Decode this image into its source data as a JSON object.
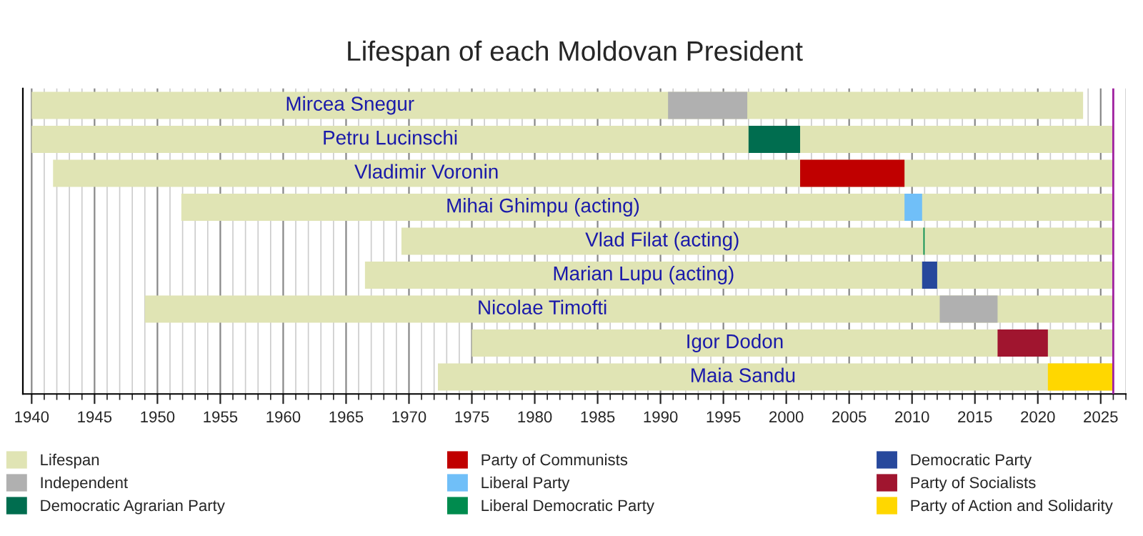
{
  "chart_data": {
    "type": "bar",
    "orientation": "horizontal",
    "title": "Lifespan of each Moldovan President",
    "categories": [
      "Mircea Snegur",
      "Petru Lucinschi",
      "Vladimir Voronin",
      "Mihai Ghimpu (acting)",
      "Vlad Filat (acting)",
      "Marian Lupu (acting)",
      "Nicolae Timofti",
      "Igor Dodon",
      "Maia Sandu"
    ],
    "series": [
      {
        "name": "Lifespan",
        "color": "#e0e4b4",
        "base": [
          1940.0,
          1940.0,
          1941.7,
          1951.9,
          1969.4,
          1966.5,
          1949.0,
          1975.0,
          1972.3
        ],
        "values": [
          83.6,
          86.0,
          84.3,
          74.1,
          56.6,
          59.5,
          77.0,
          51.0,
          53.7
        ]
      },
      {
        "name": "Independent",
        "color": "#b0b0b0",
        "base": [
          1990.6,
          null,
          null,
          null,
          null,
          null,
          2012.2,
          null,
          null
        ],
        "values": [
          6.3,
          null,
          null,
          null,
          null,
          null,
          4.6,
          null,
          null
        ]
      },
      {
        "name": "Democratic Agrarian Party",
        "color": "#006d4f",
        "base": [
          null,
          1997.0,
          null,
          null,
          null,
          null,
          null,
          null,
          null
        ],
        "values": [
          null,
          4.1,
          null,
          null,
          null,
          null,
          null,
          null,
          null
        ]
      },
      {
        "name": "Party of Communists",
        "color": "#c00000",
        "base": [
          null,
          null,
          2001.1,
          null,
          null,
          null,
          null,
          null,
          null
        ],
        "values": [
          null,
          null,
          8.3,
          null,
          null,
          null,
          null,
          null,
          null
        ]
      },
      {
        "name": "Liberal Party",
        "color": "#70bff8",
        "base": [
          null,
          null,
          null,
          2009.4,
          null,
          null,
          null,
          null,
          null
        ],
        "values": [
          null,
          null,
          null,
          1.4,
          null,
          null,
          null,
          null,
          null
        ]
      },
      {
        "name": "Liberal Democratic Party",
        "color": "#008b4e",
        "base": [
          null,
          null,
          null,
          null,
          2010.9,
          null,
          null,
          null,
          null
        ],
        "values": [
          null,
          null,
          null,
          null,
          0.1,
          null,
          null,
          null,
          null
        ]
      },
      {
        "name": "Democratic Party",
        "color": "#27489c",
        "base": [
          null,
          null,
          null,
          null,
          null,
          2010.8,
          null,
          null,
          null
        ],
        "values": [
          null,
          null,
          null,
          null,
          null,
          1.2,
          null,
          null,
          null
        ]
      },
      {
        "name": "Party of Socialists",
        "color": "#a0152f",
        "base": [
          null,
          null,
          null,
          null,
          null,
          null,
          null,
          2016.8,
          null
        ],
        "values": [
          null,
          null,
          null,
          null,
          null,
          null,
          null,
          4.0,
          null
        ]
      },
      {
        "name": "Party of Action and Solidarity",
        "color": "#ffd700",
        "base": [
          null,
          null,
          null,
          null,
          null,
          null,
          null,
          null,
          2020.8
        ],
        "values": [
          null,
          null,
          null,
          null,
          null,
          null,
          null,
          null,
          5.2
        ]
      }
    ],
    "xlim": [
      1939.3,
      2027.0
    ],
    "xticks": [
      1940,
      1945,
      1950,
      1955,
      1960,
      1965,
      1970,
      1975,
      1980,
      1985,
      1990,
      1995,
      2000,
      2005,
      2010,
      2015,
      2020,
      2025
    ],
    "ref_lines": [
      {
        "axis": "x",
        "value": 2026.0,
        "color": "#a020a0"
      }
    ],
    "grid": "x",
    "legend": "bottom",
    "tick_labels": "x"
  }
}
